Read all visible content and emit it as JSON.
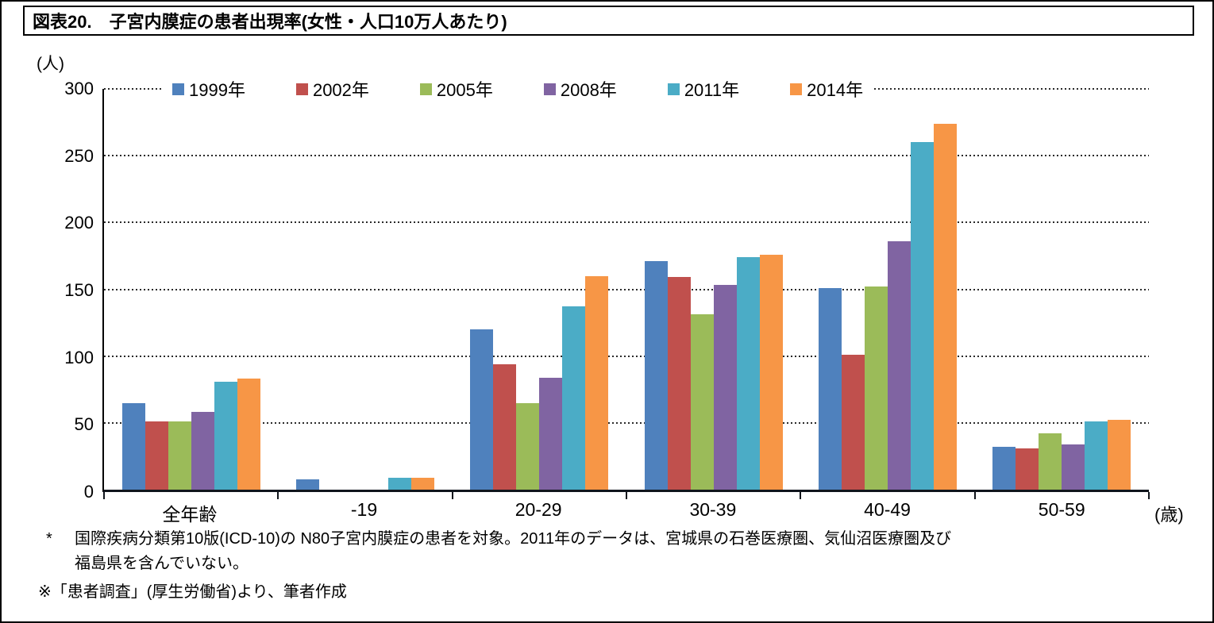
{
  "title": "図表20.　子宮内膜症の患者出現率(女性・人口10万人あたり)",
  "y_axis_unit": "(人)",
  "x_axis_unit": "(歳)",
  "footnote1_marker": "*",
  "footnote1_line1": "国際疾病分類第10版(ICD-10)の N80子宮内膜症の患者を対象。2011年のデータは、宮城県の石巻医療圏、気仙沼医療圏及び",
  "footnote1_line2": "福島県を含んでいない。",
  "footnote2": "※「患者調査」(厚生労働省)より、筆者作成",
  "chart_data": {
    "type": "bar",
    "title": "図表20.　子宮内膜症の患者出現率(女性・人口10万人あたり)",
    "xlabel": "(歳)",
    "ylabel": "(人)",
    "ylim": [
      0,
      300
    ],
    "yticks": [
      0,
      50,
      100,
      150,
      200,
      250,
      300
    ],
    "grid": "horizontal dotted",
    "legend_position": "top",
    "categories": [
      "全年齢",
      "-19",
      "20-29",
      "30-39",
      "40-49",
      "50-59"
    ],
    "series": [
      {
        "name": "1999年",
        "color": "#4F81BD",
        "values": [
          65,
          8,
          120,
          171,
          151,
          32
        ]
      },
      {
        "name": "2002年",
        "color": "#C0504D",
        "values": [
          51,
          0,
          94,
          159,
          101,
          31
        ]
      },
      {
        "name": "2005年",
        "color": "#9BBB59",
        "values": [
          51,
          0,
          65,
          131,
          152,
          42
        ]
      },
      {
        "name": "2008年",
        "color": "#8064A2",
        "values": [
          58,
          0,
          84,
          153,
          186,
          34
        ]
      },
      {
        "name": "2011年",
        "color": "#4BACC6",
        "values": [
          81,
          9,
          137,
          174,
          260,
          51
        ]
      },
      {
        "name": "2014年",
        "color": "#F79646",
        "values": [
          83,
          9,
          160,
          176,
          274,
          52
        ]
      }
    ]
  }
}
